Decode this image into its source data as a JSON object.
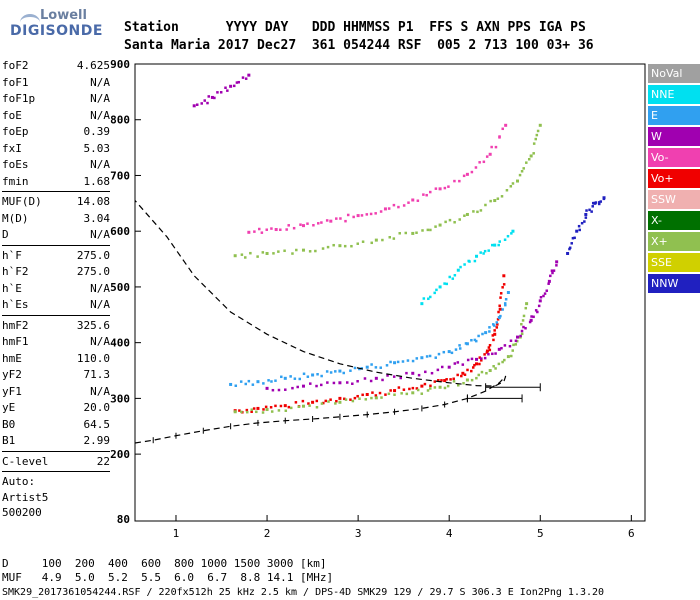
{
  "logo": {
    "line1": "Lowell",
    "line2": "DIGISONDE"
  },
  "header": {
    "row1": "Station      YYYY DAY   DDD HHMMSS P1  FFS S AXN PPS IGA PS",
    "row2": "Santa Maria 2017 Dec27  361 054244 RSF  005 2 713 100 03+ 36"
  },
  "params": [
    [
      {
        "k": "foF2",
        "v": "4.625"
      },
      {
        "k": "foF1",
        "v": "N/A"
      },
      {
        "k": "foF1p",
        "v": "N/A"
      },
      {
        "k": "foE",
        "v": "N/A"
      },
      {
        "k": "foEp",
        "v": "0.39"
      },
      {
        "k": "fxI",
        "v": "5.03"
      },
      {
        "k": "foEs",
        "v": "N/A"
      },
      {
        "k": "fmin",
        "v": "1.68"
      }
    ],
    [
      {
        "k": "MUF(D)",
        "v": "14.08"
      },
      {
        "k": "M(D)",
        "v": "3.04"
      },
      {
        "k": "D",
        "v": "N/A"
      }
    ],
    [
      {
        "k": "h`F",
        "v": "275.0"
      },
      {
        "k": "h`F2",
        "v": "275.0"
      },
      {
        "k": "h`E",
        "v": "N/A"
      },
      {
        "k": "h`Es",
        "v": "N/A"
      }
    ],
    [
      {
        "k": "hmF2",
        "v": "325.6"
      },
      {
        "k": "hmF1",
        "v": "N/A"
      },
      {
        "k": "hmE",
        "v": "110.0"
      },
      {
        "k": "yF2",
        "v": "71.3"
      },
      {
        "k": "yF1",
        "v": "N/A"
      },
      {
        "k": "yE",
        "v": "20.0"
      },
      {
        "k": "B0",
        "v": "64.5"
      },
      {
        "k": "B1",
        "v": "2.99"
      }
    ],
    [
      {
        "k": "C-level",
        "v": "22"
      }
    ]
  ],
  "auto": {
    "line1": "Auto:",
    "line2": "Artist5",
    "line3": "500200"
  },
  "legend": [
    {
      "label": "NoVal",
      "color": "#a0a0a0"
    },
    {
      "label": "NNE",
      "color": "#00e0f0"
    },
    {
      "label": "E",
      "color": "#30a0f0"
    },
    {
      "label": "W",
      "color": "#a000b0"
    },
    {
      "label": "Vo-",
      "color": "#f040b0"
    },
    {
      "label": "Vo+",
      "color": "#f00000"
    },
    {
      "label": "SSW",
      "color": "#f0b0b0"
    },
    {
      "label": "X-",
      "color": "#007000"
    },
    {
      "label": "X+",
      "color": "#90c050"
    },
    {
      "label": "SSE",
      "color": "#d0d000"
    },
    {
      "label": "NNW",
      "color": "#2020c0"
    }
  ],
  "footer": {
    "row1": "D     100  200  400  600  800 1000 1500 3000 [km]",
    "row2": "MUF   4.9  5.0  5.2  5.5  6.0  6.7  8.8 14.1 [MHz]",
    "row3": "SMK29_2017361054244.RSF / 220fx512h 25 kHz 2.5 km / DPS-4D SMK29 129 / 29.7 S 306.3 E Ion2Png 1.3.20"
  },
  "chart_data": {
    "type": "scatter",
    "xlim": [
      0.55,
      6.15
    ],
    "ylim": [
      80,
      900
    ],
    "x_ticks": [
      1,
      2,
      3,
      4,
      5,
      6
    ],
    "y_ticks": [
      200,
      300,
      400,
      500,
      600,
      700,
      800,
      900
    ],
    "y_tick_bottom": 80,
    "grid": false,
    "legend_position": "right",
    "series": [
      {
        "name": "Vo+",
        "color": "#f00000",
        "x": [
          1.65,
          1.9,
          2.2,
          2.5,
          2.8,
          3.1,
          3.4,
          3.7,
          3.95,
          4.15,
          4.3,
          4.42,
          4.5,
          4.56,
          4.6
        ],
        "y": [
          278,
          282,
          287,
          293,
          300,
          307,
          314,
          322,
          332,
          345,
          362,
          385,
          415,
          460,
          520
        ]
      },
      {
        "name": "X+",
        "color": "#90c050",
        "x": [
          1.65,
          2.0,
          2.4,
          2.8,
          3.2,
          3.6,
          3.9,
          4.2,
          4.45,
          4.65,
          4.78,
          4.85
        ],
        "y": [
          276,
          280,
          286,
          293,
          301,
          310,
          320,
          333,
          350,
          375,
          410,
          470
        ]
      },
      {
        "name": "E",
        "color": "#30a0f0",
        "x": [
          1.6,
          1.9,
          2.2,
          2.5,
          2.8,
          3.1,
          3.4,
          3.7,
          4.0,
          4.2,
          4.4,
          4.55,
          4.65
        ],
        "y": [
          325,
          330,
          336,
          342,
          349,
          356,
          364,
          373,
          384,
          398,
          418,
          445,
          490
        ]
      },
      {
        "name": "W",
        "color": "#a000b0",
        "x": [
          2.0,
          2.4,
          2.8,
          3.2,
          3.6,
          4.0,
          4.3,
          4.55,
          4.75,
          4.9,
          5.0,
          5.1,
          5.18
        ],
        "y": [
          318,
          322,
          328,
          336,
          345,
          356,
          370,
          388,
          410,
          440,
          475,
          510,
          545
        ]
      },
      {
        "name": "Vo-",
        "color": "#f040b0",
        "x": [
          1.8,
          2.1,
          2.4,
          2.7,
          3.0,
          3.3,
          3.6,
          3.9,
          4.2,
          4.45,
          4.62
        ],
        "y": [
          598,
          603,
          610,
          618,
          628,
          640,
          656,
          676,
          702,
          738,
          790
        ]
      },
      {
        "name": "X+",
        "color": "#90c050",
        "x": [
          1.65,
          2.0,
          2.4,
          2.8,
          3.2,
          3.6,
          3.9,
          4.2,
          4.5,
          4.75,
          4.9,
          5.0
        ],
        "y": [
          556,
          560,
          566,
          574,
          584,
          596,
          611,
          630,
          655,
          690,
          735,
          790
        ]
      },
      {
        "name": "W",
        "color": "#a000b0",
        "x": [
          1.2,
          1.4,
          1.6,
          1.8
        ],
        "y": [
          825,
          840,
          860,
          880
        ]
      },
      {
        "name": "NNW",
        "color": "#2020c0",
        "x": [
          5.3,
          5.4,
          5.5,
          5.6,
          5.7
        ],
        "y": [
          560,
          600,
          630,
          650,
          660
        ]
      },
      {
        "name": "NNE",
        "color": "#00e0f0",
        "x": [
          3.7,
          3.9,
          4.1,
          4.3,
          4.5,
          4.7
        ],
        "y": [
          470,
          500,
          530,
          555,
          575,
          600
        ]
      }
    ],
    "profile_x": [
      0.55,
      0.75,
      1.0,
      1.3,
      1.6,
      1.9,
      2.2,
      2.5,
      2.8,
      3.1,
      3.4,
      3.7,
      3.95,
      4.2,
      4.4,
      4.55,
      4.62,
      4.6,
      4.5,
      4.3,
      4.0,
      3.6,
      3.2,
      2.8,
      2.4,
      2.0,
      1.6,
      1.2,
      0.9,
      0.55
    ],
    "profile_y": [
      220,
      225,
      233,
      242,
      250,
      256,
      260,
      263,
      267,
      271,
      276,
      282,
      289,
      300,
      313,
      328,
      340,
      330,
      322,
      323,
      328,
      336,
      347,
      362,
      384,
      415,
      455,
      520,
      590,
      655
    ],
    "profile_errorbars": [
      {
        "x": 4.7,
        "y": 320,
        "dx": 0.3
      },
      {
        "x": 4.5,
        "y": 300,
        "dx": 0.3
      }
    ]
  }
}
